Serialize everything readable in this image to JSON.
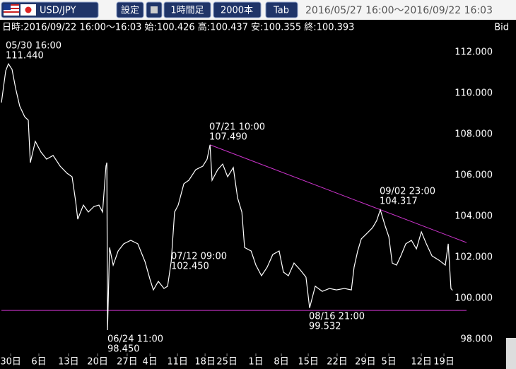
{
  "toolbar": {
    "symbol": "USD/JPY",
    "buttons": [
      "設定",
      "1時間足",
      "2000本",
      "Tab"
    ],
    "range": "2016/05/27 16:00～2016/09/22 16:03"
  },
  "chart_data": {
    "type": "line",
    "info": "日時:2016/09/22 16:00～16:03 始:100.426 高:100.437 安:100.355 終:100.393",
    "price_side": "Bid",
    "color": "#ffffff",
    "x": [
      0,
      19,
      31,
      47,
      63,
      81,
      103,
      119,
      128,
      150,
      175,
      200,
      229,
      260,
      291,
      313,
      329,
      338,
      363,
      385,
      410,
      432,
      448,
      463,
      467,
      470,
      479,
      495,
      517,
      542,
      573,
      604,
      636,
      658,
      673,
      695,
      720,
      736,
      752,
      767,
      783,
      808,
      830,
      861,
      892,
      911,
      924,
      933,
      958,
      980,
      1002,
      1027,
      1046,
      1065,
      1077,
      1106,
      1127,
      1152,
      1177,
      1202,
      1230,
      1249,
      1271,
      1296,
      1324,
      1349,
      1365,
      1390,
      1421,
      1453,
      1484,
      1519,
      1550,
      1562,
      1578,
      1594,
      1619,
      1644,
      1662,
      1678,
      1700,
      1716,
      1731,
      1750,
      1769,
      1791,
      1816,
      1838,
      1860,
      1882,
      1907,
      1938,
      1966,
      1979,
      1991,
      1998
    ],
    "values": [
      109.55,
      111.1,
      111.44,
      111.17,
      110.24,
      109.38,
      108.86,
      108.69,
      106.62,
      107.66,
      107.14,
      106.79,
      106.97,
      106.45,
      106.1,
      105.93,
      104.72,
      103.86,
      104.55,
      104.21,
      104.48,
      104.55,
      104.21,
      106.45,
      106.62,
      98.45,
      102.48,
      101.62,
      102.31,
      102.66,
      102.83,
      102.66,
      101.79,
      100.93,
      100.41,
      100.83,
      100.48,
      100.59,
      101.79,
      104.21,
      104.55,
      105.59,
      105.76,
      106.28,
      106.45,
      106.79,
      107.49,
      105.76,
      106.28,
      106.55,
      105.93,
      106.38,
      104.9,
      104.21,
      102.48,
      102.31,
      101.62,
      101.1,
      101.52,
      102.14,
      102.31,
      101.28,
      101.1,
      101.72,
      101.38,
      101.03,
      99.53,
      100.59,
      100.34,
      100.48,
      100.41,
      100.48,
      100.41,
      101.52,
      102.31,
      102.9,
      103.17,
      103.45,
      103.79,
      104.32,
      103.52,
      103.0,
      101.72,
      101.62,
      102.07,
      102.66,
      102.83,
      102.41,
      103.24,
      102.66,
      102.07,
      101.86,
      101.62,
      102.66,
      100.48,
      100.39
    ],
    "xlim": [
      0,
      2060
    ],
    "xticks": [
      {
        "value": 41,
        "label": "30日"
      },
      {
        "value": 166,
        "label": "6日"
      },
      {
        "value": 297,
        "label": "13日"
      },
      {
        "value": 426,
        "label": "20日"
      },
      {
        "value": 557,
        "label": "27日"
      },
      {
        "value": 658,
        "label": "4日"
      },
      {
        "value": 780,
        "label": "11日"
      },
      {
        "value": 902,
        "label": "18日"
      },
      {
        "value": 999,
        "label": "25日"
      },
      {
        "value": 1127,
        "label": "1日"
      },
      {
        "value": 1240,
        "label": "8日"
      },
      {
        "value": 1359,
        "label": "15日"
      },
      {
        "value": 1487,
        "label": "22日"
      },
      {
        "value": 1612,
        "label": "29日"
      },
      {
        "value": 1716,
        "label": "5日"
      },
      {
        "value": 1860,
        "label": "12日"
      },
      {
        "value": 1960,
        "label": "19日"
      }
    ],
    "ylim": [
      97.31,
      113.59
    ],
    "yticks": [
      {
        "value": 98,
        "label": "98.000"
      },
      {
        "value": 100,
        "label": "100.000"
      },
      {
        "value": 102,
        "label": "102.000"
      },
      {
        "value": 104,
        "label": "104.000"
      },
      {
        "value": 106,
        "label": "106.000"
      },
      {
        "value": 108,
        "label": "108.000"
      },
      {
        "value": 110,
        "label": "110.000"
      },
      {
        "value": 112,
        "label": "112.000"
      }
    ],
    "lines": [
      {
        "color": "#cc33cc",
        "x": [
          924,
          2060
        ],
        "values": [
          107.49,
          102.72
        ]
      },
      {
        "color": "#cc33cc",
        "x": [
          0,
          2060
        ],
        "values": [
          99.41,
          99.41
        ]
      }
    ],
    "annotations": [
      {
        "time": "05/30 16:00",
        "price": "111.440"
      },
      {
        "time": "07/21 10:00",
        "price": "107.490"
      },
      {
        "time": "09/02 23:00",
        "price": "104.317"
      },
      {
        "time": "07/12 09:00",
        "price": "102.450"
      },
      {
        "time": "06/24 11:00",
        "price": "98.450"
      },
      {
        "time": "08/16 21:00",
        "price": "99.532"
      }
    ]
  }
}
